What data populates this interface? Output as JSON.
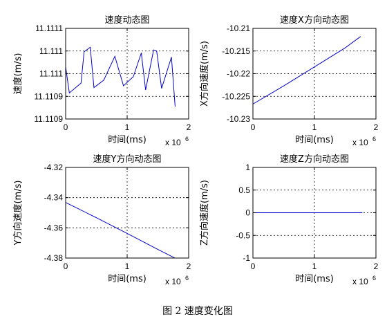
{
  "figure_caption": "图 2  速度变化图",
  "chart_data": [
    {
      "type": "line",
      "title": "速度动态图",
      "xlabel": "时间(ms)",
      "ylabel": "速度(m/s)",
      "x_exponent": "x 10",
      "x_exponent_power": "6",
      "xlim": [
        0,
        2
      ],
      "ylim": [
        11.11088,
        11.11112
      ],
      "xticks": [
        0,
        1,
        2
      ],
      "xtick_labels": [
        "0",
        "1",
        "2"
      ],
      "yticks": [
        11.11088,
        11.11094,
        11.111,
        11.11106,
        11.11112
      ],
      "ytick_labels": [
        "11.1109",
        "11.1109",
        "11.111",
        "11.111",
        "11.1111"
      ],
      "grid": true,
      "line_color": "#0000cc",
      "series": [
        {
          "x": [
            0,
            0.06,
            0.25,
            0.3,
            0.4,
            0.46,
            0.62,
            0.8,
            0.94,
            1.1,
            1.23,
            1.3,
            1.43,
            1.48,
            1.56,
            1.72,
            1.78
          ],
          "y": [
            11.111018,
            11.110949,
            11.110975,
            11.111058,
            11.11107,
            11.110963,
            11.110983,
            11.111046,
            11.110968,
            11.110992,
            11.111055,
            11.110957,
            11.111063,
            11.11106,
            11.110961,
            11.111044,
            11.110913
          ]
        }
      ]
    },
    {
      "type": "line",
      "title": "速度X方向动态图",
      "xlabel": "时间(ms)",
      "ylabel": "X方向速度(m/s)",
      "x_exponent": "x 10",
      "x_exponent_power": "6",
      "xlim": [
        0,
        2
      ],
      "ylim": [
        -10.23,
        -10.21
      ],
      "xticks": [
        0,
        1,
        2
      ],
      "xtick_labels": [
        "0",
        "1",
        "2"
      ],
      "yticks": [
        -10.23,
        -10.225,
        -10.22,
        -10.215,
        -10.21
      ],
      "ytick_labels": [
        "-10.23",
        "-10.225",
        "-10.22",
        "-10.215",
        "-10.21"
      ],
      "grid": true,
      "line_color": "#0000cc",
      "series": [
        {
          "x": [
            0,
            0.5,
            1.0,
            1.5,
            1.75
          ],
          "y": [
            -10.2267,
            -10.2227,
            -10.2185,
            -10.2143,
            -10.2118
          ]
        }
      ]
    },
    {
      "type": "line",
      "title": "速度Y方向动态图",
      "xlabel": "时间(ms)",
      "ylabel": "Y方向速度(m/s)",
      "x_exponent": "x 10",
      "x_exponent_power": "6",
      "xlim": [
        0,
        2
      ],
      "ylim": [
        -4.38,
        -4.32
      ],
      "xticks": [
        0,
        1,
        2
      ],
      "xtick_labels": [
        "0",
        "1",
        "2"
      ],
      "yticks": [
        -4.38,
        -4.36,
        -4.34,
        -4.32
      ],
      "ytick_labels": [
        "-4.38",
        "-4.36",
        "-4.34",
        "-4.32"
      ],
      "grid": true,
      "line_color": "#0000cc",
      "series": [
        {
          "x": [
            0,
            0.5,
            1.0,
            1.5,
            1.78
          ],
          "y": [
            -4.3432,
            -4.3533,
            -4.3637,
            -4.3743,
            -4.3801
          ]
        }
      ]
    },
    {
      "type": "line",
      "title": "速度Z方向动态图",
      "xlabel": "时间(ms)",
      "ylabel": "Z方向速度(m/s)",
      "x_exponent": "x 10",
      "x_exponent_power": "6",
      "xlim": [
        0,
        2
      ],
      "ylim": [
        -1,
        1
      ],
      "xticks": [
        0,
        1,
        2
      ],
      "xtick_labels": [
        "0",
        "1",
        "2"
      ],
      "yticks": [
        -1,
        -0.5,
        0,
        0.5,
        1
      ],
      "ytick_labels": [
        "-1",
        "-0.5",
        "0",
        "0.5",
        "1"
      ],
      "grid": true,
      "line_color": "#0000cc",
      "series": [
        {
          "x": [
            0,
            1.78
          ],
          "y": [
            0,
            0
          ]
        }
      ]
    }
  ]
}
